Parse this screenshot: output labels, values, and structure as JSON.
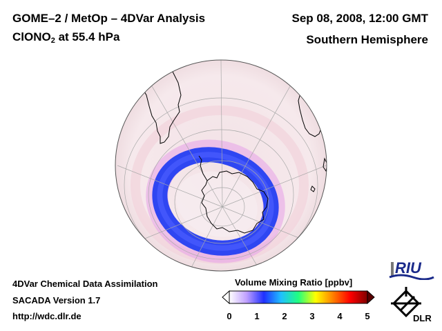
{
  "header": {
    "title_left_line1": "GOME–2 / MetOp – 4DVar Analysis",
    "species_main": "ClONO",
    "species_sub": "2",
    "species_rest": " at 55.4 hPa",
    "datetime": "Sep 08, 2008, 12:00 GMT",
    "region": "Southern Hemisphere"
  },
  "footer": {
    "line1": "4DVar Chemical Data Assimilation",
    "line2": "SACADA Version 1.7",
    "line3": "http://wdc.dlr.de"
  },
  "colorbar": {
    "title": "Volume Mixing Ratio [ppbv]",
    "range": [
      0,
      5
    ],
    "ticks": [
      "0",
      "1",
      "2",
      "3",
      "4",
      "5"
    ],
    "stops": [
      "#ffffff",
      "#c0a0ff",
      "#2030ff",
      "#20c0ff",
      "#20ff80",
      "#ffff00",
      "#ff8000",
      "#ff0000",
      "#800000"
    ]
  },
  "logos": {
    "riu": "RIU",
    "dlr": "DLR"
  },
  "colors": {
    "ring": "#3048f0",
    "ring_halo": "#e080e0",
    "background_field": "#f5e6ea",
    "grid": "#999999",
    "coast": "#000000"
  }
}
